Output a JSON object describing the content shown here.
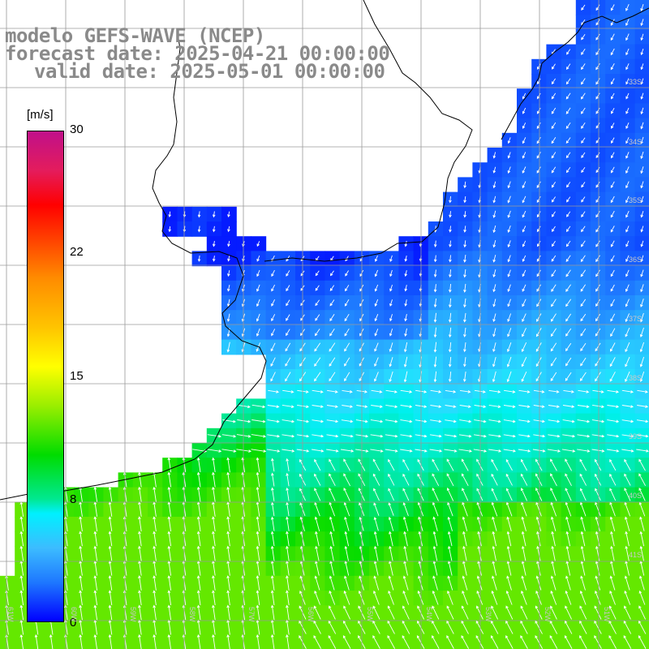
{
  "header": {
    "line1": "modelo GEFS-WAVE (NCEP)",
    "line2": "forecast date: 2025-04-21 00:00:00",
    "line3": "valid date: 2025-05-01 00:00:00"
  },
  "colorbar": {
    "unit": "[m/s]",
    "ticks": [
      "30",
      "22",
      "15",
      "8",
      "0"
    ],
    "min": 0,
    "max": 30
  },
  "map": {
    "field": "wave / wind speed with direction arrows",
    "gridlines": true,
    "latitude_labels": [
      "33S",
      "34S",
      "35S",
      "36S",
      "37S",
      "38S",
      "39S",
      "40S",
      "41S"
    ],
    "longitude_labels": [
      "61W",
      "60W",
      "59W",
      "58W",
      "57W",
      "56W",
      "55W",
      "54W",
      "53W",
      "52W",
      "51W"
    ]
  }
}
